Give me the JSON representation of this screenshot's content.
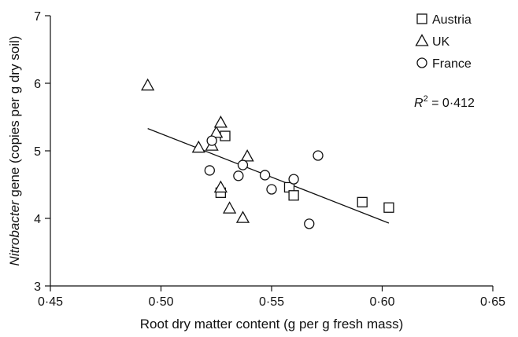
{
  "chart_data": {
    "type": "scatter",
    "xlabel": "Root dry matter content (g per g fresh mass)",
    "ylabel_italic": "Nitrobacter",
    "ylabel_rest": " gene (copies per g dry soil)",
    "xlim": [
      0.45,
      0.65
    ],
    "ylim": [
      3,
      7
    ],
    "x_ticks": [
      0.45,
      0.5,
      0.55,
      0.6,
      0.65
    ],
    "x_tick_labels": [
      "0·45",
      "0·50",
      "0·55",
      "0·60",
      "0·65"
    ],
    "y_ticks": [
      3,
      4,
      5,
      6,
      7
    ],
    "y_tick_labels": [
      "3",
      "4",
      "5",
      "6",
      "7"
    ],
    "grid": false,
    "legend_position": "top-right",
    "annotation": {
      "r2_label": "R",
      "r2_sup": "2",
      "r2_value": " = 0·412"
    },
    "trendline": {
      "x": [
        0.494,
        0.603
      ],
      "y": [
        5.33,
        3.93
      ]
    },
    "series": [
      {
        "name": "Austria",
        "marker": "square",
        "points": [
          {
            "x": 0.527,
            "y": 4.38
          },
          {
            "x": 0.529,
            "y": 5.22
          },
          {
            "x": 0.558,
            "y": 4.46
          },
          {
            "x": 0.56,
            "y": 4.34
          },
          {
            "x": 0.591,
            "y": 4.24
          },
          {
            "x": 0.603,
            "y": 4.16
          }
        ]
      },
      {
        "name": "UK",
        "marker": "triangle",
        "points": [
          {
            "x": 0.494,
            "y": 5.97
          },
          {
            "x": 0.517,
            "y": 5.05
          },
          {
            "x": 0.523,
            "y": 5.08
          },
          {
            "x": 0.525,
            "y": 5.27
          },
          {
            "x": 0.527,
            "y": 5.42
          },
          {
            "x": 0.527,
            "y": 4.46
          },
          {
            "x": 0.531,
            "y": 4.15
          },
          {
            "x": 0.537,
            "y": 4.01
          },
          {
            "x": 0.539,
            "y": 4.92
          }
        ]
      },
      {
        "name": "France",
        "marker": "circle",
        "points": [
          {
            "x": 0.522,
            "y": 4.71
          },
          {
            "x": 0.523,
            "y": 5.15
          },
          {
            "x": 0.535,
            "y": 4.63
          },
          {
            "x": 0.537,
            "y": 4.79
          },
          {
            "x": 0.547,
            "y": 4.64
          },
          {
            "x": 0.55,
            "y": 4.43
          },
          {
            "x": 0.56,
            "y": 4.58
          },
          {
            "x": 0.567,
            "y": 3.92
          },
          {
            "x": 0.571,
            "y": 4.93
          }
        ]
      }
    ]
  }
}
